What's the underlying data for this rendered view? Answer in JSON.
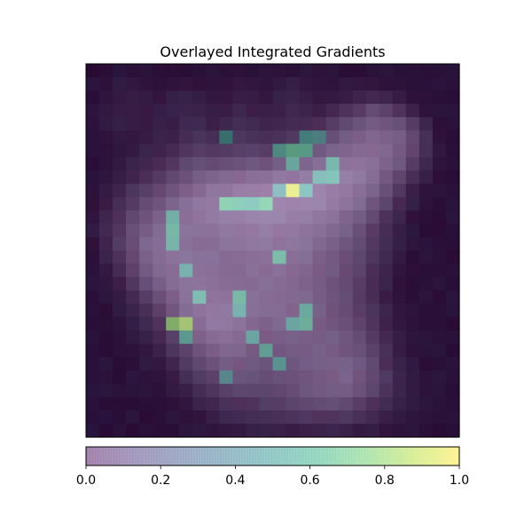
{
  "chart_data": {
    "type": "heatmap",
    "title": "Overlayed Integrated Gradients",
    "xlabel": "",
    "ylabel": "",
    "colormap": "viridis",
    "overlay_alpha": 0.5,
    "colorbar": {
      "orientation": "horizontal",
      "placement": "bottom",
      "range": [
        0.0,
        1.0
      ],
      "ticks": [
        0.0,
        0.2,
        0.4,
        0.6,
        0.8,
        1.0
      ],
      "tick_labels": [
        "0.0",
        "0.2",
        "0.4",
        "0.6",
        "0.8",
        "1.0"
      ]
    },
    "grid": false,
    "axes_ticks": false,
    "rows": 28,
    "cols": 28,
    "base_image": [
      [
        0.05,
        0.06,
        0.05,
        0.07,
        0.06,
        0.08,
        0.07,
        0.06,
        0.05,
        0.06,
        0.07,
        0.08,
        0.06,
        0.07,
        0.08,
        0.07,
        0.06,
        0.08,
        0.07,
        0.06,
        0.05,
        0.06,
        0.07,
        0.06,
        0.05,
        0.06,
        0.05,
        0.04
      ],
      [
        0.06,
        0.08,
        0.1,
        0.12,
        0.1,
        0.09,
        0.1,
        0.12,
        0.1,
        0.09,
        0.1,
        0.14,
        0.12,
        0.1,
        0.12,
        0.14,
        0.12,
        0.1,
        0.09,
        0.12,
        0.14,
        0.12,
        0.1,
        0.08,
        0.06,
        0.05,
        0.06,
        0.05
      ],
      [
        0.07,
        0.1,
        0.14,
        0.16,
        0.14,
        0.12,
        0.14,
        0.16,
        0.14,
        0.12,
        0.14,
        0.18,
        0.16,
        0.14,
        0.16,
        0.18,
        0.16,
        0.14,
        0.14,
        0.18,
        0.22,
        0.26,
        0.22,
        0.16,
        0.1,
        0.07,
        0.06,
        0.05
      ],
      [
        0.08,
        0.12,
        0.16,
        0.18,
        0.16,
        0.14,
        0.16,
        0.2,
        0.18,
        0.16,
        0.18,
        0.22,
        0.2,
        0.18,
        0.2,
        0.22,
        0.2,
        0.2,
        0.26,
        0.34,
        0.42,
        0.5,
        0.46,
        0.36,
        0.22,
        0.1,
        0.07,
        0.06
      ],
      [
        0.08,
        0.12,
        0.14,
        0.16,
        0.16,
        0.16,
        0.18,
        0.22,
        0.22,
        0.2,
        0.22,
        0.26,
        0.24,
        0.22,
        0.24,
        0.26,
        0.28,
        0.32,
        0.4,
        0.48,
        0.56,
        0.64,
        0.62,
        0.54,
        0.4,
        0.2,
        0.08,
        0.06
      ],
      [
        0.07,
        0.1,
        0.12,
        0.14,
        0.16,
        0.18,
        0.22,
        0.28,
        0.3,
        0.28,
        0.3,
        0.32,
        0.3,
        0.3,
        0.32,
        0.36,
        0.4,
        0.46,
        0.54,
        0.62,
        0.7,
        0.74,
        0.72,
        0.66,
        0.52,
        0.28,
        0.1,
        0.06
      ],
      [
        0.06,
        0.08,
        0.1,
        0.14,
        0.18,
        0.22,
        0.28,
        0.36,
        0.4,
        0.38,
        0.4,
        0.42,
        0.42,
        0.42,
        0.46,
        0.5,
        0.54,
        0.6,
        0.68,
        0.74,
        0.78,
        0.78,
        0.74,
        0.66,
        0.5,
        0.26,
        0.1,
        0.06
      ],
      [
        0.06,
        0.08,
        0.12,
        0.18,
        0.24,
        0.3,
        0.38,
        0.46,
        0.52,
        0.52,
        0.54,
        0.56,
        0.58,
        0.6,
        0.64,
        0.68,
        0.72,
        0.78,
        0.82,
        0.84,
        0.84,
        0.8,
        0.72,
        0.6,
        0.42,
        0.22,
        0.09,
        0.06
      ],
      [
        0.06,
        0.1,
        0.16,
        0.24,
        0.32,
        0.4,
        0.48,
        0.58,
        0.66,
        0.7,
        0.74,
        0.78,
        0.8,
        0.82,
        0.86,
        0.88,
        0.9,
        0.92,
        0.92,
        0.9,
        0.86,
        0.78,
        0.64,
        0.48,
        0.3,
        0.16,
        0.08,
        0.06
      ],
      [
        0.08,
        0.14,
        0.22,
        0.32,
        0.42,
        0.52,
        0.6,
        0.7,
        0.78,
        0.84,
        0.88,
        0.92,
        0.94,
        0.96,
        0.98,
        0.98,
        0.98,
        0.96,
        0.94,
        0.9,
        0.82,
        0.7,
        0.54,
        0.36,
        0.2,
        0.1,
        0.07,
        0.06
      ],
      [
        0.1,
        0.18,
        0.28,
        0.4,
        0.52,
        0.62,
        0.7,
        0.78,
        0.86,
        0.9,
        0.94,
        0.96,
        0.98,
        0.98,
        0.98,
        0.98,
        0.96,
        0.94,
        0.9,
        0.84,
        0.74,
        0.6,
        0.44,
        0.28,
        0.14,
        0.08,
        0.06,
        0.05
      ],
      [
        0.12,
        0.22,
        0.34,
        0.48,
        0.6,
        0.7,
        0.76,
        0.82,
        0.86,
        0.88,
        0.9,
        0.92,
        0.94,
        0.94,
        0.94,
        0.92,
        0.9,
        0.86,
        0.82,
        0.74,
        0.64,
        0.5,
        0.34,
        0.2,
        0.1,
        0.07,
        0.06,
        0.05
      ],
      [
        0.12,
        0.24,
        0.38,
        0.54,
        0.66,
        0.74,
        0.78,
        0.8,
        0.82,
        0.84,
        0.86,
        0.88,
        0.9,
        0.9,
        0.9,
        0.88,
        0.84,
        0.8,
        0.74,
        0.66,
        0.56,
        0.42,
        0.28,
        0.16,
        0.08,
        0.06,
        0.06,
        0.05
      ],
      [
        0.1,
        0.22,
        0.38,
        0.56,
        0.7,
        0.78,
        0.8,
        0.8,
        0.8,
        0.8,
        0.82,
        0.84,
        0.86,
        0.86,
        0.86,
        0.84,
        0.8,
        0.74,
        0.68,
        0.6,
        0.5,
        0.38,
        0.24,
        0.14,
        0.08,
        0.06,
        0.06,
        0.05
      ],
      [
        0.08,
        0.18,
        0.34,
        0.52,
        0.68,
        0.78,
        0.82,
        0.82,
        0.8,
        0.78,
        0.78,
        0.8,
        0.82,
        0.82,
        0.82,
        0.8,
        0.76,
        0.7,
        0.64,
        0.56,
        0.46,
        0.34,
        0.22,
        0.12,
        0.07,
        0.06,
        0.06,
        0.05
      ],
      [
        0.07,
        0.14,
        0.28,
        0.46,
        0.62,
        0.74,
        0.8,
        0.82,
        0.82,
        0.8,
        0.78,
        0.78,
        0.8,
        0.8,
        0.8,
        0.78,
        0.74,
        0.68,
        0.62,
        0.54,
        0.44,
        0.32,
        0.2,
        0.12,
        0.08,
        0.06,
        0.06,
        0.05
      ],
      [
        0.06,
        0.1,
        0.2,
        0.36,
        0.52,
        0.66,
        0.76,
        0.82,
        0.84,
        0.82,
        0.8,
        0.78,
        0.78,
        0.78,
        0.78,
        0.76,
        0.72,
        0.66,
        0.6,
        0.52,
        0.42,
        0.3,
        0.18,
        0.1,
        0.07,
        0.06,
        0.06,
        0.05
      ],
      [
        0.06,
        0.08,
        0.14,
        0.26,
        0.4,
        0.56,
        0.7,
        0.8,
        0.86,
        0.86,
        0.84,
        0.8,
        0.78,
        0.78,
        0.78,
        0.76,
        0.72,
        0.66,
        0.6,
        0.52,
        0.42,
        0.3,
        0.18,
        0.1,
        0.07,
        0.06,
        0.06,
        0.05
      ],
      [
        0.05,
        0.07,
        0.1,
        0.18,
        0.3,
        0.46,
        0.62,
        0.76,
        0.84,
        0.88,
        0.86,
        0.82,
        0.78,
        0.76,
        0.76,
        0.74,
        0.7,
        0.66,
        0.6,
        0.54,
        0.44,
        0.32,
        0.2,
        0.12,
        0.07,
        0.06,
        0.06,
        0.05
      ],
      [
        0.05,
        0.06,
        0.08,
        0.12,
        0.22,
        0.36,
        0.52,
        0.68,
        0.8,
        0.86,
        0.86,
        0.82,
        0.76,
        0.72,
        0.72,
        0.72,
        0.7,
        0.66,
        0.62,
        0.56,
        0.48,
        0.36,
        0.22,
        0.12,
        0.08,
        0.06,
        0.06,
        0.05
      ],
      [
        0.05,
        0.06,
        0.07,
        0.1,
        0.16,
        0.28,
        0.42,
        0.58,
        0.72,
        0.8,
        0.82,
        0.78,
        0.72,
        0.68,
        0.68,
        0.68,
        0.68,
        0.66,
        0.64,
        0.6,
        0.52,
        0.4,
        0.26,
        0.14,
        0.08,
        0.06,
        0.06,
        0.05
      ],
      [
        0.05,
        0.06,
        0.07,
        0.08,
        0.12,
        0.2,
        0.32,
        0.46,
        0.6,
        0.7,
        0.74,
        0.72,
        0.66,
        0.62,
        0.62,
        0.64,
        0.66,
        0.66,
        0.66,
        0.62,
        0.56,
        0.44,
        0.3,
        0.16,
        0.09,
        0.06,
        0.06,
        0.05
      ],
      [
        0.05,
        0.06,
        0.06,
        0.07,
        0.1,
        0.14,
        0.24,
        0.36,
        0.48,
        0.58,
        0.64,
        0.64,
        0.6,
        0.56,
        0.58,
        0.6,
        0.64,
        0.66,
        0.68,
        0.66,
        0.6,
        0.48,
        0.32,
        0.18,
        0.1,
        0.07,
        0.06,
        0.05
      ],
      [
        0.05,
        0.06,
        0.06,
        0.07,
        0.08,
        0.1,
        0.16,
        0.26,
        0.36,
        0.46,
        0.54,
        0.56,
        0.54,
        0.52,
        0.54,
        0.58,
        0.62,
        0.66,
        0.68,
        0.68,
        0.62,
        0.5,
        0.34,
        0.2,
        0.12,
        0.08,
        0.06,
        0.05
      ],
      [
        0.05,
        0.06,
        0.06,
        0.06,
        0.07,
        0.08,
        0.12,
        0.18,
        0.26,
        0.34,
        0.42,
        0.46,
        0.46,
        0.46,
        0.5,
        0.54,
        0.58,
        0.62,
        0.64,
        0.64,
        0.58,
        0.46,
        0.32,
        0.2,
        0.12,
        0.08,
        0.06,
        0.05
      ],
      [
        0.05,
        0.05,
        0.06,
        0.06,
        0.06,
        0.07,
        0.09,
        0.12,
        0.18,
        0.24,
        0.3,
        0.34,
        0.36,
        0.38,
        0.4,
        0.44,
        0.48,
        0.5,
        0.52,
        0.5,
        0.44,
        0.34,
        0.24,
        0.16,
        0.1,
        0.07,
        0.06,
        0.05
      ],
      [
        0.05,
        0.05,
        0.05,
        0.06,
        0.06,
        0.06,
        0.07,
        0.09,
        0.12,
        0.16,
        0.2,
        0.24,
        0.26,
        0.28,
        0.3,
        0.32,
        0.34,
        0.36,
        0.36,
        0.34,
        0.3,
        0.24,
        0.18,
        0.12,
        0.08,
        0.06,
        0.05,
        0.05
      ],
      [
        0.04,
        0.05,
        0.05,
        0.05,
        0.05,
        0.06,
        0.06,
        0.07,
        0.08,
        0.1,
        0.12,
        0.14,
        0.16,
        0.16,
        0.18,
        0.18,
        0.2,
        0.2,
        0.2,
        0.18,
        0.16,
        0.14,
        0.12,
        0.09,
        0.07,
        0.06,
        0.05,
        0.04
      ]
    ],
    "attribution_hotspots": [
      {
        "row": 5,
        "col": 10,
        "value": 0.5
      },
      {
        "row": 5,
        "col": 16,
        "value": 0.5
      },
      {
        "row": 5,
        "col": 17,
        "value": 0.45
      },
      {
        "row": 6,
        "col": 14,
        "value": 0.55
      },
      {
        "row": 6,
        "col": 15,
        "value": 0.65
      },
      {
        "row": 6,
        "col": 16,
        "value": 0.6
      },
      {
        "row": 7,
        "col": 15,
        "value": 0.55
      },
      {
        "row": 7,
        "col": 18,
        "value": 0.55
      },
      {
        "row": 8,
        "col": 17,
        "value": 0.5
      },
      {
        "row": 8,
        "col": 18,
        "value": 0.55
      },
      {
        "row": 9,
        "col": 14,
        "value": 0.45
      },
      {
        "row": 9,
        "col": 15,
        "value": 0.95
      },
      {
        "row": 9,
        "col": 16,
        "value": 0.5
      },
      {
        "row": 10,
        "col": 10,
        "value": 0.65
      },
      {
        "row": 10,
        "col": 11,
        "value": 0.6
      },
      {
        "row": 10,
        "col": 12,
        "value": 0.55
      },
      {
        "row": 10,
        "col": 13,
        "value": 0.65
      },
      {
        "row": 11,
        "col": 6,
        "value": 0.55
      },
      {
        "row": 12,
        "col": 6,
        "value": 0.6
      },
      {
        "row": 13,
        "col": 6,
        "value": 0.55
      },
      {
        "row": 14,
        "col": 14,
        "value": 0.6
      },
      {
        "row": 15,
        "col": 7,
        "value": 0.5
      },
      {
        "row": 17,
        "col": 8,
        "value": 0.55
      },
      {
        "row": 17,
        "col": 11,
        "value": 0.6
      },
      {
        "row": 18,
        "col": 11,
        "value": 0.5
      },
      {
        "row": 18,
        "col": 16,
        "value": 0.55
      },
      {
        "row": 19,
        "col": 6,
        "value": 0.8
      },
      {
        "row": 19,
        "col": 7,
        "value": 0.85
      },
      {
        "row": 19,
        "col": 15,
        "value": 0.5
      },
      {
        "row": 19,
        "col": 16,
        "value": 0.6
      },
      {
        "row": 20,
        "col": 7,
        "value": 0.55
      },
      {
        "row": 20,
        "col": 12,
        "value": 0.5
      },
      {
        "row": 21,
        "col": 13,
        "value": 0.55
      },
      {
        "row": 22,
        "col": 14,
        "value": 0.5
      },
      {
        "row": 23,
        "col": 10,
        "value": 0.45
      }
    ]
  }
}
